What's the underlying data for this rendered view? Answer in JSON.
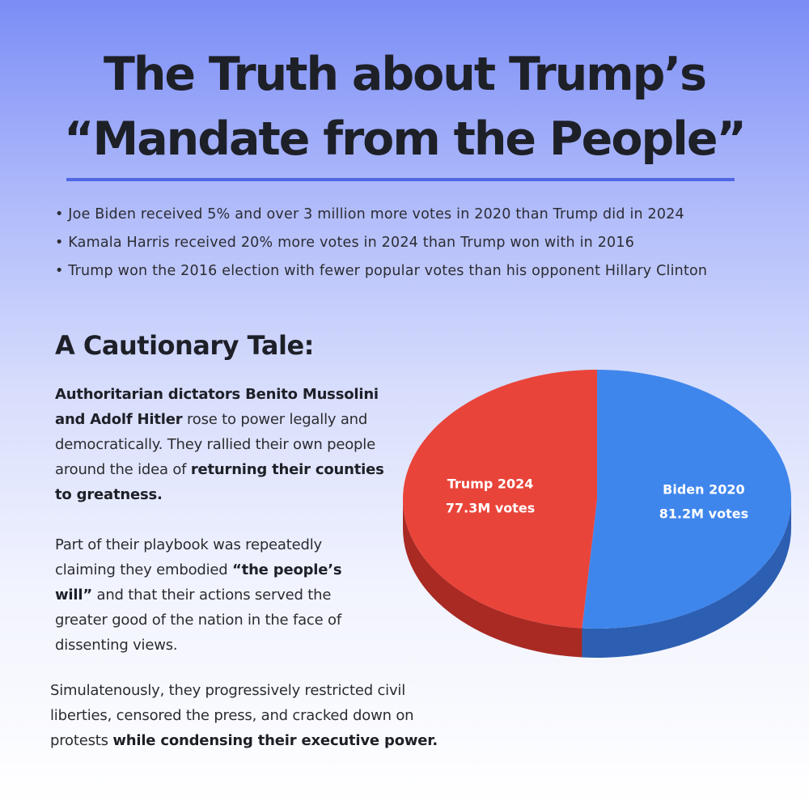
{
  "header": {
    "title_line1": "The Truth about Trump’s",
    "title_line2": "“Mandate from the People”"
  },
  "bullets": [
    "Joe Biden received 5% and over 3 million more votes in 2020 than Trump did in 2024",
    "Kamala Harris received 20% more votes in 2024 than Trump won with in 2016",
    "Trump won the 2016 election with fewer popular votes than his opponent Hillary Clinton"
  ],
  "section": {
    "title": "A Cautionary Tale:",
    "p1_bold1": "Authoritarian dictators Benito Mussolini and Adolf Hitler",
    "p1_text1": " rose to power legally and democratically. They rallied their own people around the idea of ",
    "p1_bold2": "returning their counties to greatness.",
    "p2_text1": "Part of their playbook was repeatedly claiming they embodied ",
    "p2_bold1": "“the people’s will”",
    "p2_text2": " and that their actions served the greater good of the nation in the face of dissenting views.",
    "p3_text1": "Simulatenously, they progressively restricted civil liberties, censored the press, and cracked down on protests ",
    "p3_bold1": "while condensing their executive power."
  },
  "chart_data": {
    "type": "pie",
    "title": "",
    "slices": [
      {
        "name": "Biden 2020",
        "value": 81.2,
        "value_label": "81.2M votes",
        "color": "#3f86ec",
        "side_color": "#2c5fb2"
      },
      {
        "name": "Trump 2024",
        "value": 77.3,
        "value_label": "77.3M votes",
        "color": "#e9443a",
        "side_color": "#a82a23"
      }
    ]
  },
  "colors": {
    "accent_rule": "#5068e6",
    "text_dark": "#1e2028"
  }
}
